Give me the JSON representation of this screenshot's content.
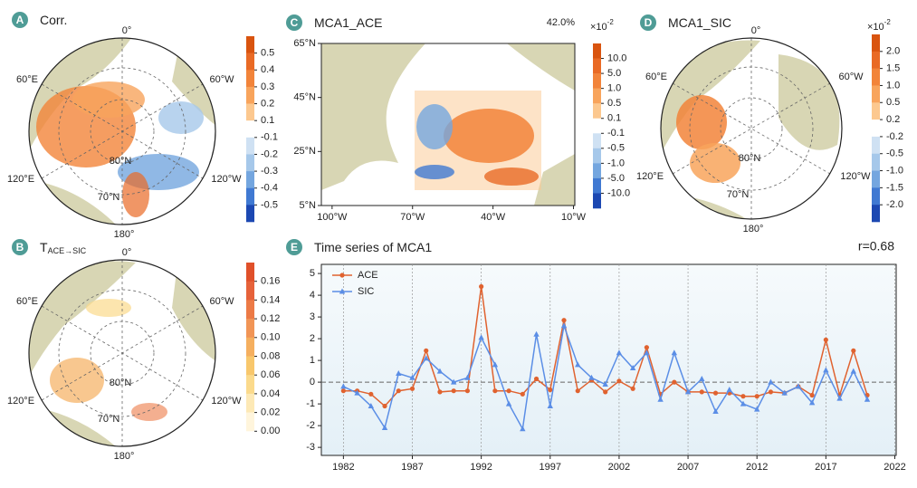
{
  "chart_data": [
    {
      "type": "polar-map",
      "label": "A",
      "title": "Corr.",
      "grid_labels": [
        "0°",
        "60°W",
        "120°W",
        "180°",
        "120°E",
        "60°E",
        "80°N",
        "70°N"
      ],
      "colorbar_ticks": [
        0.5,
        0.4,
        0.3,
        0.2,
        0.1,
        -0.1,
        -0.2,
        -0.3,
        -0.4,
        -0.5
      ],
      "colorbar_colors": [
        "#d9540f",
        "#e96a25",
        "#f2843a",
        "#f8a45c",
        "#fcc88f",
        "#ffffff",
        "#cfe1f3",
        "#a6c8ea",
        "#74a6df",
        "#4079d2",
        "#1c48b2"
      ]
    },
    {
      "type": "polar-map",
      "label": "B",
      "title": "T",
      "title_subscript": "ACE→SIC",
      "grid_labels": [
        "0°",
        "60°W",
        "120°W",
        "180°",
        "120°E",
        "60°E",
        "80°N",
        "70°N"
      ],
      "colorbar_ticks": [
        0.16,
        0.14,
        0.12,
        {
          "value": 0.1,
          "label": "0.10"
        },
        0.08,
        0.06,
        0.04,
        0.02,
        {
          "value": 0,
          "label": "0.00"
        }
      ],
      "colorbar_colors": [
        "#e0502a",
        "#e6623a",
        "#ec7a46",
        "#f19556",
        "#f5af5f",
        "#f8c76c",
        "#fbda8c",
        "#fde9b6",
        "#fff5dc",
        "#ffffff"
      ]
    },
    {
      "type": "region-map",
      "label": "C",
      "title": "MCA1_ACE",
      "annotation": "42.0%",
      "scale_label": "×10",
      "scale_exponent": "-2",
      "xlim": [
        -104,
        -9.5
      ],
      "ylim": [
        5,
        65
      ],
      "xticks": [
        {
          "value": -100,
          "label": "100°W"
        },
        {
          "value": -70,
          "label": "70°W"
        },
        {
          "value": -40,
          "label": "40°W"
        },
        {
          "value": -10,
          "label": "10°W"
        }
      ],
      "yticks": [
        {
          "value": 65,
          "label": "65°N"
        },
        {
          "value": 45,
          "label": "45°N"
        },
        {
          "value": 25,
          "label": "25°N"
        },
        {
          "value": 5,
          "label": "5°N"
        }
      ],
      "colorbar_ticks": [
        {
          "value": 10,
          "label": "10.0"
        },
        {
          "value": 5,
          "label": "5.0"
        },
        {
          "value": 1,
          "label": "1.0"
        },
        0.5,
        0.1,
        -0.1,
        -0.5,
        {
          "value": -1,
          "label": "-1.0"
        },
        {
          "value": -5,
          "label": "-5.0"
        },
        {
          "value": -10,
          "label": "-10.0"
        }
      ],
      "colorbar_colors": [
        "#d9540f",
        "#e96a25",
        "#f2843a",
        "#f8a45c",
        "#fcc88f",
        "#ffffff",
        "#cfe1f3",
        "#a6c8ea",
        "#74a6df",
        "#4079d2",
        "#1c48b2"
      ]
    },
    {
      "type": "polar-map",
      "label": "D",
      "title": "MCA1_SIC",
      "scale_label": "×10",
      "scale_exponent": "-2",
      "grid_labels": [
        "0°",
        "60°W",
        "120°W",
        "180°",
        "120°E",
        "60°E",
        "80°N",
        "70°N"
      ],
      "colorbar_ticks": [
        {
          "value": 2,
          "label": "2.0"
        },
        1.5,
        {
          "value": 1,
          "label": "1.0"
        },
        0.5,
        0.2,
        -0.2,
        -0.5,
        {
          "value": -1,
          "label": "-1.0"
        },
        -1.5,
        {
          "value": -2,
          "label": "-2.0"
        }
      ],
      "colorbar_colors": [
        "#d9540f",
        "#e96a25",
        "#f2843a",
        "#f8a45c",
        "#fcc88f",
        "#ffffff",
        "#cfe1f3",
        "#a6c8ea",
        "#74a6df",
        "#4079d2",
        "#1c48b2"
      ]
    },
    {
      "type": "line",
      "label": "E",
      "title": "Time series of MCA1",
      "annotation": "r=0.68",
      "x": [
        1982,
        1983,
        1984,
        1985,
        1986,
        1987,
        1988,
        1989,
        1990,
        1991,
        1992,
        1993,
        1994,
        1995,
        1996,
        1997,
        1998,
        1999,
        2000,
        2001,
        2002,
        2003,
        2004,
        2005,
        2006,
        2007,
        2008,
        2009,
        2010,
        2011,
        2012,
        2013,
        2014,
        2015,
        2016,
        2017,
        2018,
        2019,
        2020
      ],
      "series": [
        {
          "name": "ACE",
          "color": "#e0622f",
          "marker": "circle",
          "values": [
            -0.4,
            -0.4,
            -0.55,
            -1.1,
            -0.4,
            -0.3,
            1.45,
            -0.45,
            -0.4,
            -0.4,
            4.4,
            -0.4,
            -0.4,
            -0.55,
            0.15,
            -0.35,
            2.85,
            -0.4,
            0.1,
            -0.45,
            0.05,
            -0.3,
            1.6,
            -0.55,
            0.0,
            -0.45,
            -0.45,
            -0.5,
            -0.5,
            -0.65,
            -0.65,
            -0.45,
            -0.5,
            -0.2,
            -0.6,
            1.95,
            -0.6,
            1.45,
            -0.6
          ]
        },
        {
          "name": "SIC",
          "color": "#5b8ee6",
          "marker": "triangle",
          "values": [
            -0.2,
            -0.5,
            -1.1,
            -2.1,
            0.4,
            0.2,
            1.1,
            0.5,
            0.0,
            0.2,
            2.05,
            0.8,
            -1.0,
            -2.15,
            2.2,
            -1.1,
            2.6,
            0.8,
            0.2,
            -0.1,
            1.35,
            0.65,
            1.35,
            -0.8,
            1.35,
            -0.45,
            0.15,
            -1.35,
            -0.35,
            -1.0,
            -1.25,
            0.0,
            -0.5,
            -0.2,
            -0.95,
            0.55,
            -0.75,
            0.5,
            -0.8
          ]
        }
      ],
      "xlim": [
        1980.4,
        2022.1
      ],
      "ylim": [
        -3.37,
        5.42
      ],
      "xticks": [
        1982,
        1987,
        1992,
        1997,
        2002,
        2007,
        2012,
        2017,
        2022
      ],
      "yticks": [
        -3,
        -2,
        -1,
        0,
        1,
        2,
        3,
        4,
        5
      ],
      "grid": "x",
      "hline": 0,
      "legend": "upper left"
    }
  ]
}
